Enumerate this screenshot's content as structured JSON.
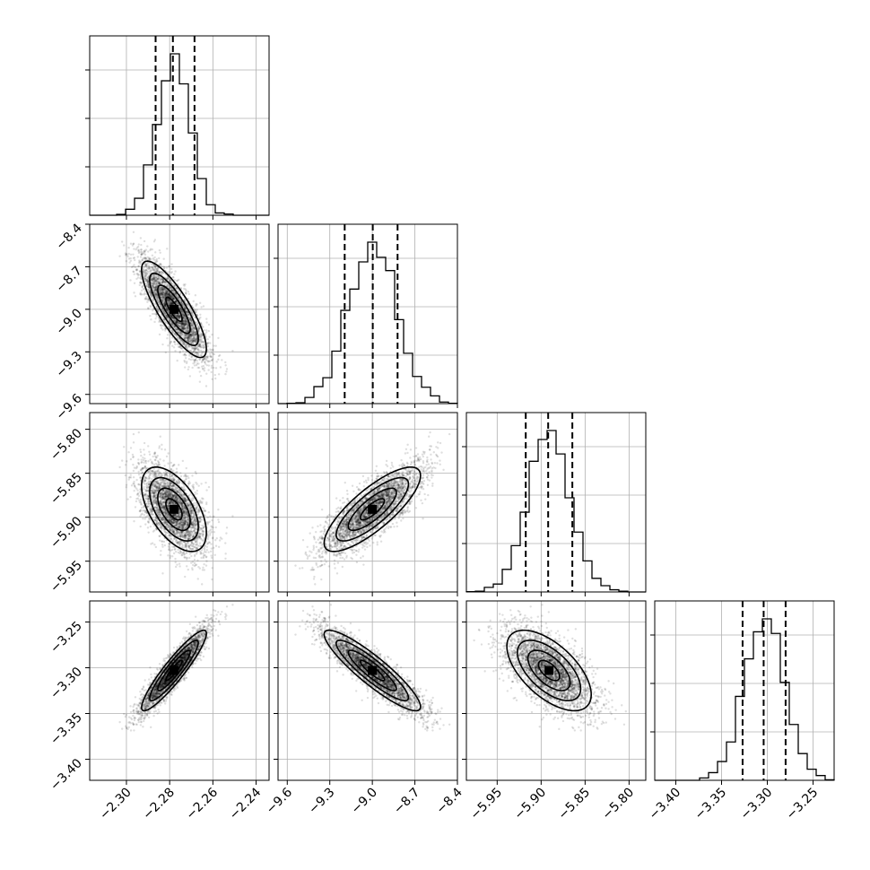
{
  "chart_data": {
    "type": "corner",
    "title": "",
    "parameters": [
      {
        "range": [
          -2.317,
          -2.234
        ],
        "ticks": [
          -2.3,
          -2.28,
          -2.26,
          -2.24
        ],
        "tick_labels": [
          "−2.30",
          "−2.28",
          "−2.26",
          "−2.24"
        ],
        "mean": -2.278,
        "std": 0.0075,
        "quantiles": [
          -2.2865,
          -2.2785,
          -2.2685
        ]
      },
      {
        "range": [
          -9.665,
          -8.4
        ],
        "ticks": [
          -9.6,
          -9.3,
          -9.0,
          -8.7,
          -8.4
        ],
        "tick_labels": [
          "−9.6",
          "−9.3",
          "−9.0",
          "−8.7",
          "−8.4"
        ],
        "mean": -9.0,
        "std": 0.17,
        "quantiles": [
          -9.195,
          -8.997,
          -8.822
        ]
      },
      {
        "range": [
          -5.985,
          -5.781
        ],
        "ticks": [
          -5.95,
          -5.9,
          -5.85,
          -5.8
        ],
        "tick_labels": [
          "−5.95",
          "−5.90",
          "−5.85",
          "−5.80"
        ],
        "mean": -5.891,
        "std": 0.024,
        "quantiles": [
          -5.9175,
          -5.892,
          -5.8645
        ]
      },
      {
        "range": [
          -3.423,
          -3.227
        ],
        "ticks": [
          -3.4,
          -3.35,
          -3.3,
          -3.25
        ],
        "tick_labels": [
          "−3.40",
          "−3.35",
          "−3.30",
          "−3.25"
        ],
        "mean": -3.303,
        "std": 0.022,
        "quantiles": [
          -3.327,
          -3.304,
          -3.28
        ]
      }
    ],
    "correlations": [
      [
        1,
        -0.82,
        -0.55,
        0.92
      ],
      [
        -0.82,
        1,
        0.8,
        -0.9
      ],
      [
        -0.55,
        0.8,
        1,
        -0.6
      ],
      [
        0.92,
        -0.9,
        -0.6,
        1
      ]
    ],
    "histogram_bins": 20,
    "contour_levels": [
      0.5,
      1.0,
      1.5,
      2.0
    ],
    "grid": true,
    "legend": "none"
  }
}
